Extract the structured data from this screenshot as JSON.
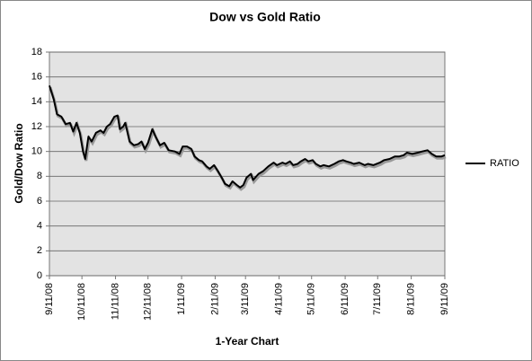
{
  "chart_data": {
    "type": "line",
    "title": "Dow vs Gold Ratio",
    "xlabel": "1-Year Chart",
    "ylabel": "Gold/Dow Ratio",
    "x": [
      "9/11/08",
      "9/15/08",
      "9/18/08",
      "9/22/08",
      "9/26/08",
      "9/30/08",
      "10/3/08",
      "10/6/08",
      "10/9/08",
      "10/12/08",
      "10/14/08",
      "10/17/08",
      "10/20/08",
      "10/24/08",
      "10/28/08",
      "10/31/08",
      "11/3/08",
      "11/6/08",
      "11/10/08",
      "11/13/08",
      "11/15/08",
      "11/18/08",
      "11/20/08",
      "11/24/08",
      "11/28/08",
      "12/2/08",
      "12/5/08",
      "12/8/08",
      "12/11/08",
      "12/15/08",
      "12/18/08",
      "12/22/08",
      "12/26/08",
      "12/30/08",
      "1/5/09",
      "1/9/09",
      "1/12/09",
      "1/16/09",
      "1/20/09",
      "1/23/09",
      "1/27/09",
      "1/30/09",
      "2/3/09",
      "2/6/09",
      "2/10/09",
      "2/13/09",
      "2/17/09",
      "2/20/09",
      "2/24/09",
      "2/27/09",
      "3/3/09",
      "3/6/09",
      "3/9/09",
      "3/12/09",
      "3/16/09",
      "3/18/09",
      "3/23/09",
      "3/27/09",
      "4/1/09",
      "4/6/09",
      "4/9/09",
      "4/14/09",
      "4/17/09",
      "4/21/09",
      "4/24/09",
      "4/28/09",
      "5/1/09",
      "5/5/09",
      "5/8/09",
      "5/12/09",
      "5/15/09",
      "5/19/09",
      "5/22/09",
      "5/27/09",
      "6/1/09",
      "6/5/09",
      "6/9/09",
      "6/12/09",
      "6/16/09",
      "6/19/09",
      "6/24/09",
      "6/29/09",
      "7/2/09",
      "7/7/09",
      "7/13/09",
      "7/17/09",
      "7/22/09",
      "7/27/09",
      "7/31/09",
      "8/4/09",
      "8/7/09",
      "8/12/09",
      "8/17/09",
      "8/21/09",
      "8/26/09",
      "8/30/09",
      "9/3/09",
      "9/8/09",
      "9/11/09"
    ],
    "series": [
      {
        "name": "RATIO",
        "color": "#000000",
        "values": [
          15.3,
          14.2,
          13.0,
          12.8,
          12.2,
          12.3,
          11.6,
          12.3,
          11.5,
          10.0,
          9.4,
          11.2,
          10.8,
          11.5,
          11.7,
          11.5,
          12.0,
          12.2,
          12.8,
          12.9,
          11.8,
          12.0,
          12.3,
          10.8,
          10.5,
          10.6,
          10.8,
          10.2,
          10.7,
          11.8,
          11.2,
          10.5,
          10.7,
          10.1,
          10.0,
          9.8,
          10.4,
          10.4,
          10.2,
          9.6,
          9.3,
          9.2,
          8.8,
          8.6,
          8.9,
          8.5,
          7.9,
          7.4,
          7.2,
          7.6,
          7.3,
          7.1,
          7.3,
          7.9,
          8.2,
          7.7,
          8.2,
          8.4,
          8.8,
          9.1,
          8.9,
          9.1,
          9.0,
          9.2,
          8.9,
          9.0,
          9.2,
          9.4,
          9.2,
          9.3,
          9.0,
          8.8,
          8.9,
          8.8,
          9.0,
          9.2,
          9.3,
          9.2,
          9.1,
          9.0,
          9.1,
          8.9,
          9.0,
          8.9,
          9.1,
          9.3,
          9.4,
          9.6,
          9.6,
          9.7,
          9.9,
          9.8,
          9.9,
          10.0,
          10.1,
          9.8,
          9.6,
          9.6,
          9.7
        ]
      }
    ],
    "xlim": [
      "9/11/08",
      "9/11/09"
    ],
    "xticks": [
      "9/11/08",
      "10/11/08",
      "11/11/08",
      "12/11/08",
      "1/11/09",
      "2/11/09",
      "3/11/09",
      "4/11/09",
      "5/11/09",
      "6/11/09",
      "7/11/09",
      "8/11/09",
      "9/11/09"
    ],
    "ylim": [
      0,
      18
    ],
    "yticks": [
      0,
      2,
      4,
      6,
      8,
      10,
      12,
      14,
      16,
      18
    ],
    "grid": true,
    "legend": "right"
  }
}
